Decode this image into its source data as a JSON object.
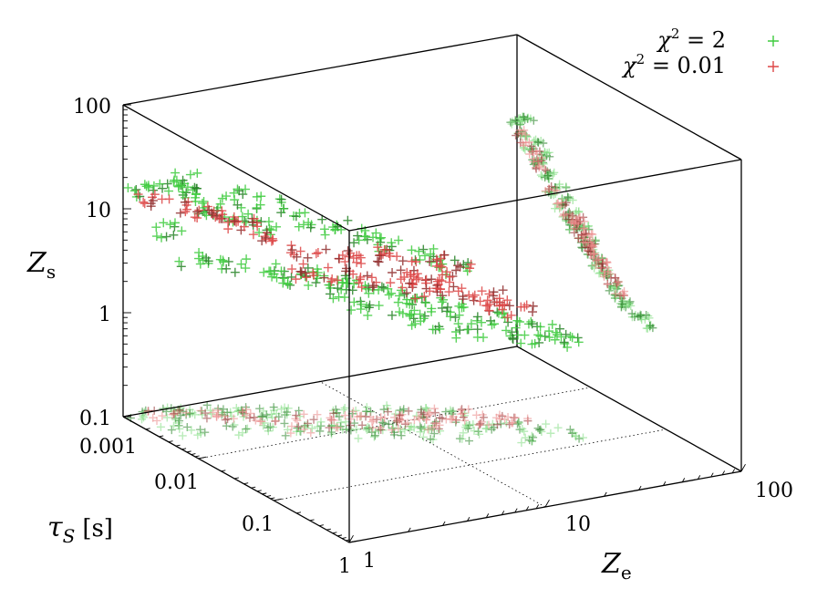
{
  "chart_data": {
    "type": "scatter",
    "dimensions": 3,
    "axes": {
      "x": {
        "label": "Z",
        "label_sub": "e",
        "scale": "log",
        "range": [
          1,
          100
        ],
        "ticks": [
          "1",
          "10",
          "100"
        ]
      },
      "y": {
        "label": "τ",
        "label_sub": "S",
        "label_unit": "[s]",
        "scale": "log",
        "range": [
          0.001,
          1
        ],
        "ticks": [
          "0.001",
          "0.01",
          "0.1",
          "1"
        ]
      },
      "z": {
        "label": "Z",
        "label_sub": "s",
        "scale": "log",
        "range": [
          0.1,
          100
        ],
        "ticks": [
          "0.1",
          "1",
          "10",
          "100"
        ]
      }
    },
    "projections": [
      "z-y back wall",
      "x-y floor",
      "x-z side wall"
    ],
    "legend_position": "top-right",
    "series": [
      {
        "name": "χ² = 2",
        "legend_label": {
          "symbol": "χ",
          "sup": "2",
          "rest": " = 2"
        },
        "color": "#3ecb3e",
        "marker": "+",
        "points": [
          {
            "x": 1.2,
            "y": 0.001,
            "z": 14
          },
          {
            "x": 1.6,
            "y": 0.0012,
            "z": 16
          },
          {
            "x": 2.0,
            "y": 0.0013,
            "z": 12
          },
          {
            "x": 2.4,
            "y": 0.0015,
            "z": 9
          },
          {
            "x": 3.0,
            "y": 0.002,
            "z": 8
          },
          {
            "x": 3.8,
            "y": 0.0025,
            "z": 6
          },
          {
            "x": 1.5,
            "y": 0.003,
            "z": 4.5
          },
          {
            "x": 2.2,
            "y": 0.004,
            "z": 3.8
          },
          {
            "x": 3.2,
            "y": 0.005,
            "z": 3.2
          },
          {
            "x": 4.5,
            "y": 0.006,
            "z": 2.8
          },
          {
            "x": 6.0,
            "y": 0.008,
            "z": 2.4
          },
          {
            "x": 8.0,
            "y": 0.01,
            "z": 2.0
          },
          {
            "x": 10,
            "y": 0.012,
            "z": 1.8
          },
          {
            "x": 13,
            "y": 0.015,
            "z": 1.5
          },
          {
            "x": 17,
            "y": 0.02,
            "z": 1.3
          },
          {
            "x": 22,
            "y": 0.025,
            "z": 1.1
          },
          {
            "x": 28,
            "y": 0.03,
            "z": 0.95
          },
          {
            "x": 35,
            "y": 0.04,
            "z": 0.85
          },
          {
            "x": 5.0,
            "y": 0.003,
            "z": 7
          },
          {
            "x": 7.0,
            "y": 0.004,
            "z": 6
          },
          {
            "x": 9.0,
            "y": 0.005,
            "z": 5
          },
          {
            "x": 12,
            "y": 0.006,
            "z": 4
          },
          {
            "x": 15,
            "y": 0.008,
            "z": 3.2
          },
          {
            "x": 20,
            "y": 0.01,
            "z": 2.5
          },
          {
            "x": 2.8,
            "y": 0.002,
            "z": 12
          },
          {
            "x": 4.0,
            "y": 0.0025,
            "z": 10
          },
          {
            "x": 1.8,
            "y": 0.0015,
            "z": 18
          },
          {
            "x": 6.5,
            "y": 0.012,
            "z": 1.6
          },
          {
            "x": 9.5,
            "y": 0.015,
            "z": 1.4
          },
          {
            "x": 25,
            "y": 0.05,
            "z": 0.9
          },
          {
            "x": 40,
            "y": 0.06,
            "z": 0.8
          },
          {
            "x": 3.5,
            "y": 0.007,
            "z": 3.0
          },
          {
            "x": 5.5,
            "y": 0.009,
            "z": 2.2
          },
          {
            "x": 11,
            "y": 0.02,
            "z": 1.2
          },
          {
            "x": 16,
            "y": 0.03,
            "z": 1.0
          },
          {
            "x": 1.3,
            "y": 0.002,
            "z": 7.5
          }
        ]
      },
      {
        "name": "χ² = 0.01",
        "legend_label": {
          "symbol": "χ",
          "sup": "2",
          "rest": " = 0.01"
        },
        "color": "#dd4646",
        "marker": "+",
        "points": [
          {
            "x": 1.3,
            "y": 0.0012,
            "z": 12
          },
          {
            "x": 1.8,
            "y": 0.0014,
            "z": 10
          },
          {
            "x": 2.5,
            "y": 0.002,
            "z": 8
          },
          {
            "x": 3.5,
            "y": 0.003,
            "z": 5
          },
          {
            "x": 5.0,
            "y": 0.004,
            "z": 4
          },
          {
            "x": 7.0,
            "y": 0.005,
            "z": 3.5
          },
          {
            "x": 9.0,
            "y": 0.006,
            "z": 3.0
          },
          {
            "x": 12,
            "y": 0.008,
            "z": 2.6
          },
          {
            "x": 15,
            "y": 0.01,
            "z": 2.2
          },
          {
            "x": 18,
            "y": 0.012,
            "z": 1.9
          },
          {
            "x": 22,
            "y": 0.015,
            "z": 1.6
          },
          {
            "x": 26,
            "y": 0.02,
            "z": 1.35
          },
          {
            "x": 30,
            "y": 0.025,
            "z": 1.15
          },
          {
            "x": 4.0,
            "y": 0.006,
            "z": 3.2
          },
          {
            "x": 6.0,
            "y": 0.007,
            "z": 2.8
          },
          {
            "x": 8.0,
            "y": 0.009,
            "z": 2.5
          },
          {
            "x": 10,
            "y": 0.011,
            "z": 2.1
          },
          {
            "x": 13,
            "y": 0.014,
            "z": 1.8
          },
          {
            "x": 2.2,
            "y": 0.0018,
            "z": 9
          },
          {
            "x": 3.0,
            "y": 0.0022,
            "z": 7
          },
          {
            "x": 11,
            "y": 0.007,
            "z": 3.6
          },
          {
            "x": 16,
            "y": 0.009,
            "z": 2.9
          },
          {
            "x": 20,
            "y": 0.011,
            "z": 2.4
          },
          {
            "x": 24,
            "y": 0.018,
            "z": 1.5
          }
        ]
      }
    ]
  }
}
